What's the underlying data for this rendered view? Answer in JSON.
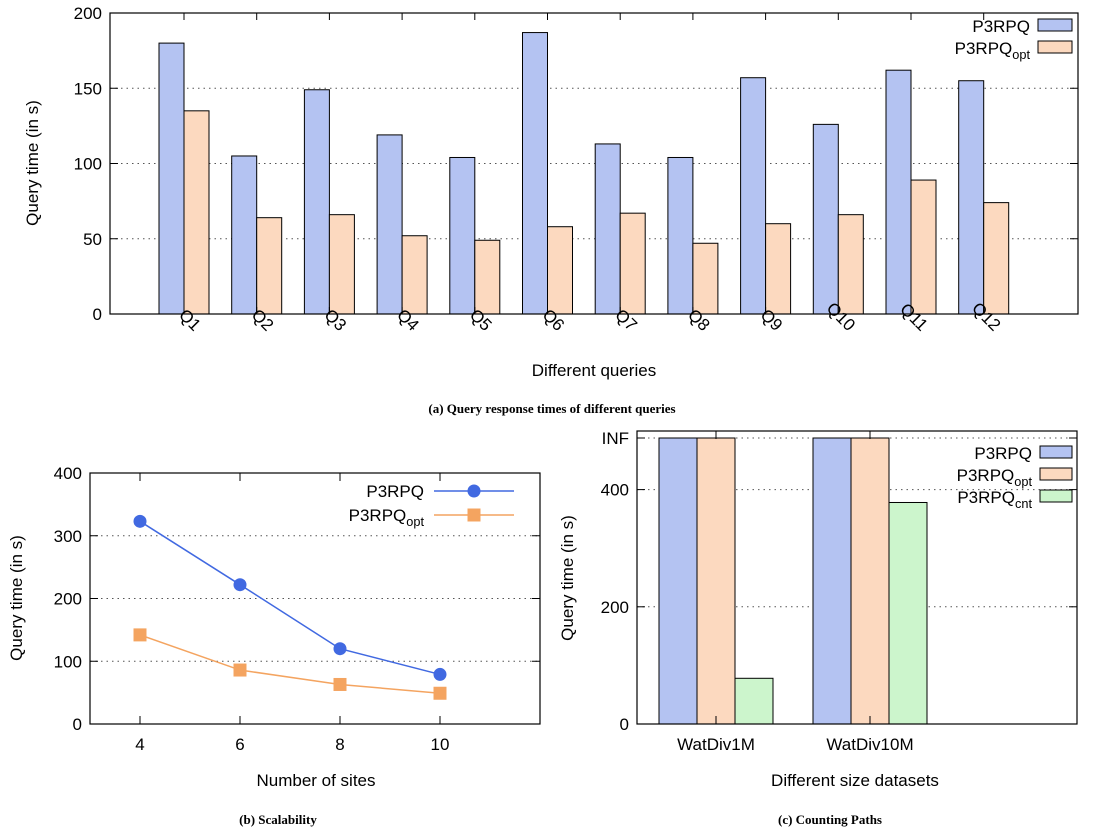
{
  "chart_data": [
    {
      "type": "bar",
      "caption": "(a) Query response times of different queries",
      "xlabel": "Different queries",
      "ylabel": "Query time (in s)",
      "ylim": [
        0,
        200
      ],
      "yticks": [
        "0",
        "50",
        "100",
        "150",
        "200"
      ],
      "grid": "horizontal dotted",
      "legend_position": "top-right",
      "categories": [
        "Q1",
        "Q2",
        "Q3",
        "Q4",
        "Q5",
        "Q6",
        "Q7",
        "Q8",
        "Q9",
        "Q10",
        "Q11",
        "Q12"
      ],
      "series": [
        {
          "name": "P3RPQ",
          "name_sub": "",
          "color": "#b4c3f2",
          "values": [
            180,
            105,
            149,
            119,
            104,
            187,
            113,
            104,
            157,
            126,
            162,
            155
          ]
        },
        {
          "name": "P3RPQ",
          "name_sub": "opt",
          "color": "#fcd9bf",
          "values": [
            135,
            64,
            66,
            52,
            49,
            58,
            67,
            47,
            60,
            66,
            89,
            74
          ]
        }
      ]
    },
    {
      "type": "line",
      "caption": "(b) Scalability",
      "xlabel": "Number of sites",
      "ylabel": "Query time (in s)",
      "xlim": [
        3,
        12
      ],
      "ylim": [
        0,
        400
      ],
      "xticks": [
        "4",
        "6",
        "8",
        "10"
      ],
      "yticks": [
        "0",
        "100",
        "200",
        "300",
        "400"
      ],
      "grid": "horizontal dotted",
      "legend_position": "top-right",
      "x": [
        4,
        6,
        8,
        10
      ],
      "series": [
        {
          "name": "P3RPQ",
          "name_sub": "",
          "color": "#4169e1",
          "marker": "circle",
          "values": [
            323,
            222,
            120,
            79
          ]
        },
        {
          "name": "P3RPQ",
          "name_sub": "opt",
          "color": "#f4a460",
          "marker": "square",
          "values": [
            142,
            86,
            63,
            49
          ]
        }
      ]
    },
    {
      "type": "bar",
      "caption": "(c) Counting Paths",
      "xlabel": "Different size datasets",
      "ylabel": "Query time (in s)",
      "ylim": [
        0,
        500
      ],
      "yticks": [
        "0",
        "200",
        "400",
        "INF"
      ],
      "grid": "horizontal dotted",
      "legend_position": "top-right",
      "categories": [
        "WatDiv1M",
        "WatDiv10M"
      ],
      "series": [
        {
          "name": "P3RPQ",
          "name_sub": "",
          "color": "#b4c3f2",
          "values": [
            "INF",
            "INF"
          ]
        },
        {
          "name": "P3RPQ",
          "name_sub": "opt",
          "color": "#fcd9bf",
          "values": [
            "INF",
            "INF"
          ]
        },
        {
          "name": "P3RPQ",
          "name_sub": "cnt",
          "color": "#ccf5cc",
          "values": [
            78,
            378
          ]
        }
      ]
    }
  ]
}
